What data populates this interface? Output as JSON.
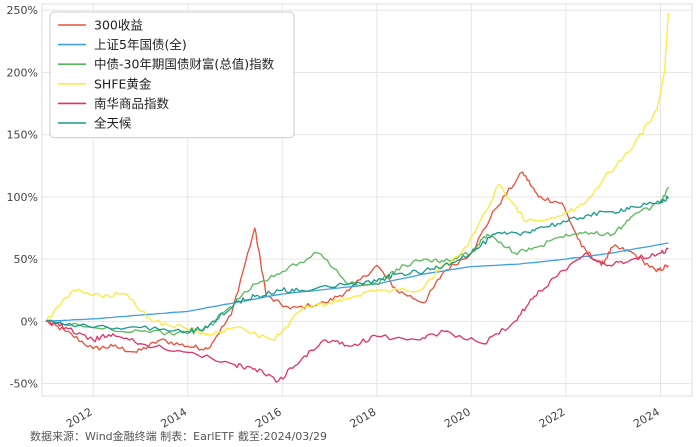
{
  "chart_data": {
    "type": "line",
    "xlim": [
      "2010-12",
      "2024-09"
    ],
    "ylim": [
      -60,
      255
    ],
    "y_ticks": [
      -50,
      0,
      50,
      100,
      150,
      200,
      250
    ],
    "y_tick_labels": [
      "-50%",
      "0%",
      "50%",
      "100%",
      "150%",
      "200%",
      "250%"
    ],
    "x_ticks": [
      "2012-01",
      "2014-01",
      "2016-01",
      "2018-01",
      "2020-01",
      "2022-01",
      "2024-01"
    ],
    "x_tick_labels": [
      "2012",
      "2014",
      "2016",
      "2018",
      "2020",
      "2022",
      "2024"
    ],
    "grid": true,
    "legend_position": "top-left",
    "series": [
      {
        "name": "300收益",
        "color": "#e8503a",
        "points": [
          [
            "2011-01",
            0
          ],
          [
            "2011-06",
            -8
          ],
          [
            "2012-01",
            -22
          ],
          [
            "2012-06",
            -20
          ],
          [
            "2012-12",
            -25
          ],
          [
            "2013-06",
            -15
          ],
          [
            "2014-01",
            -20
          ],
          [
            "2014-06",
            -22
          ],
          [
            "2014-12",
            5
          ],
          [
            "2015-06",
            75
          ],
          [
            "2015-09",
            20
          ],
          [
            "2016-03",
            10
          ],
          [
            "2016-12",
            15
          ],
          [
            "2017-06",
            25
          ],
          [
            "2018-01",
            45
          ],
          [
            "2018-06",
            25
          ],
          [
            "2019-01",
            15
          ],
          [
            "2019-06",
            40
          ],
          [
            "2020-01",
            55
          ],
          [
            "2020-07",
            90
          ],
          [
            "2021-02",
            120
          ],
          [
            "2021-06",
            100
          ],
          [
            "2021-12",
            95
          ],
          [
            "2022-05",
            60
          ],
          [
            "2022-10",
            45
          ],
          [
            "2023-01",
            60
          ],
          [
            "2023-06",
            55
          ],
          [
            "2023-12",
            40
          ],
          [
            "2024-03",
            45
          ]
        ]
      },
      {
        "name": "上证5年国债(全)",
        "color": "#3fa0e0",
        "points": [
          [
            "2011-01",
            0
          ],
          [
            "2012-01",
            2
          ],
          [
            "2013-01",
            5
          ],
          [
            "2014-01",
            8
          ],
          [
            "2015-01",
            15
          ],
          [
            "2016-01",
            22
          ],
          [
            "2017-01",
            26
          ],
          [
            "2018-01",
            30
          ],
          [
            "2019-01",
            38
          ],
          [
            "2020-01",
            44
          ],
          [
            "2021-01",
            46
          ],
          [
            "2022-01",
            50
          ],
          [
            "2023-01",
            55
          ],
          [
            "2024-03",
            63
          ]
        ]
      },
      {
        "name": "中债-30年期国债财富(总值)指数",
        "color": "#5cb85c",
        "points": [
          [
            "2011-01",
            0
          ],
          [
            "2012-01",
            -5
          ],
          [
            "2013-01",
            -8
          ],
          [
            "2014-01",
            -10
          ],
          [
            "2014-06",
            -5
          ],
          [
            "2015-01",
            15
          ],
          [
            "2015-06",
            30
          ],
          [
            "2016-01",
            40
          ],
          [
            "2016-10",
            55
          ],
          [
            "2017-06",
            30
          ],
          [
            "2018-01",
            30
          ],
          [
            "2018-06",
            42
          ],
          [
            "2019-01",
            50
          ],
          [
            "2019-06",
            48
          ],
          [
            "2020-01",
            55
          ],
          [
            "2020-05",
            70
          ],
          [
            "2020-12",
            55
          ],
          [
            "2021-06",
            60
          ],
          [
            "2022-01",
            70
          ],
          [
            "2022-06",
            72
          ],
          [
            "2023-01",
            70
          ],
          [
            "2023-06",
            85
          ],
          [
            "2024-01",
            95
          ],
          [
            "2024-03",
            108
          ]
        ]
      },
      {
        "name": "SHFE黄金",
        "color": "#ffe83a",
        "points": [
          [
            "2011-01",
            0
          ],
          [
            "2011-08",
            25
          ],
          [
            "2012-03",
            20
          ],
          [
            "2012-09",
            22
          ],
          [
            "2013-04",
            0
          ],
          [
            "2013-12",
            -5
          ],
          [
            "2014-06",
            -10
          ],
          [
            "2015-01",
            -5
          ],
          [
            "2015-11",
            -15
          ],
          [
            "2016-06",
            10
          ],
          [
            "2017-01",
            15
          ],
          [
            "2017-06",
            18
          ],
          [
            "2018-01",
            25
          ],
          [
            "2018-12",
            25
          ],
          [
            "2019-06",
            45
          ],
          [
            "2019-12",
            60
          ],
          [
            "2020-08",
            110
          ],
          [
            "2021-03",
            80
          ],
          [
            "2021-12",
            85
          ],
          [
            "2022-06",
            95
          ],
          [
            "2022-12",
            120
          ],
          [
            "2023-06",
            140
          ],
          [
            "2023-12",
            170
          ],
          [
            "2024-02",
            200
          ],
          [
            "2024-03",
            248
          ]
        ]
      },
      {
        "name": "南华商品指数",
        "color": "#e0336a",
        "points": [
          [
            "2011-01",
            0
          ],
          [
            "2011-06",
            -5
          ],
          [
            "2012-01",
            -15
          ],
          [
            "2012-06",
            -10
          ],
          [
            "2013-01",
            -18
          ],
          [
            "2014-01",
            -25
          ],
          [
            "2015-01",
            -35
          ],
          [
            "2015-06",
            -38
          ],
          [
            "2015-12",
            -48
          ],
          [
            "2016-06",
            -30
          ],
          [
            "2016-12",
            -15
          ],
          [
            "2017-06",
            -20
          ],
          [
            "2018-01",
            -12
          ],
          [
            "2018-12",
            -15
          ],
          [
            "2019-06",
            -8
          ],
          [
            "2020-04",
            -18
          ],
          [
            "2020-12",
            0
          ],
          [
            "2021-05",
            20
          ],
          [
            "2021-10",
            35
          ],
          [
            "2022-06",
            55
          ],
          [
            "2022-12",
            45
          ],
          [
            "2023-06",
            50
          ],
          [
            "2024-01",
            55
          ],
          [
            "2024-03",
            58
          ]
        ]
      },
      {
        "name": "全天候",
        "color": "#1a9a8a",
        "points": [
          [
            "2011-01",
            0
          ],
          [
            "2012-01",
            -5
          ],
          [
            "2013-01",
            -5
          ],
          [
            "2014-01",
            -8
          ],
          [
            "2014-06",
            -5
          ],
          [
            "2015-01",
            15
          ],
          [
            "2015-06",
            20
          ],
          [
            "2016-01",
            25
          ],
          [
            "2016-06",
            25
          ],
          [
            "2017-06",
            30
          ],
          [
            "2018-01",
            32
          ],
          [
            "2018-06",
            38
          ],
          [
            "2019-01",
            40
          ],
          [
            "2019-06",
            45
          ],
          [
            "2020-01",
            55
          ],
          [
            "2020-07",
            70
          ],
          [
            "2021-01",
            70
          ],
          [
            "2021-06",
            75
          ],
          [
            "2022-01",
            80
          ],
          [
            "2022-06",
            85
          ],
          [
            "2023-01",
            88
          ],
          [
            "2023-06",
            92
          ],
          [
            "2024-01",
            95
          ],
          [
            "2024-03",
            100
          ]
        ]
      }
    ]
  },
  "source_note": "数据来源：Wind金融终端 制表：EarlETF 截至:2024/03/29"
}
